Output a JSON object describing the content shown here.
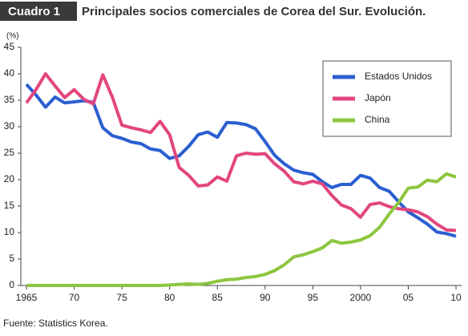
{
  "chart_data": {
    "type": "line",
    "badge": "Cuadro 1",
    "title": "Principales socios comerciales de Corea del Sur. Evolución.",
    "y_label": "(%)",
    "source": "Fuente: Statistics Korea.",
    "x": [
      1965,
      1966,
      1967,
      1968,
      1969,
      1970,
      1971,
      1972,
      1973,
      1974,
      1975,
      1976,
      1977,
      1978,
      1979,
      1980,
      1981,
      1982,
      1983,
      1984,
      1985,
      1986,
      1987,
      1988,
      1989,
      1990,
      1991,
      1992,
      1993,
      1994,
      1995,
      1996,
      1997,
      1998,
      1999,
      2000,
      2001,
      2002,
      2003,
      2004,
      2005,
      2006,
      2007,
      2008,
      2009,
      2010
    ],
    "series": [
      {
        "name": "Estados Unidos",
        "color": "#2b5fd1",
        "values": [
          38,
          36,
          33.7,
          35.6,
          34.5,
          34.7,
          34.9,
          34.6,
          29.8,
          28.3,
          27.8,
          27.1,
          26.8,
          25.8,
          25.5,
          24,
          24.5,
          26.3,
          28.5,
          29,
          28,
          30.8,
          30.7,
          30.4,
          29.6,
          27.2,
          24.6,
          23,
          21.8,
          21.3,
          21,
          19.6,
          18.5,
          19.1,
          19.1,
          20.8,
          20.3,
          18.5,
          17.8,
          15.8,
          13.9,
          12.8,
          11.6,
          10.1,
          9.8,
          9.3
        ]
      },
      {
        "name": "Japón",
        "color": "#e2467f",
        "values": [
          34.5,
          37,
          40,
          37.7,
          35.5,
          37,
          35.2,
          34.3,
          39.8,
          35.6,
          30.3,
          29.8,
          29.4,
          28.9,
          31,
          28.5,
          22.3,
          20.8,
          18.8,
          19,
          20.5,
          19.7,
          24.5,
          25,
          24.8,
          24.9,
          23,
          21.6,
          19.6,
          19.2,
          19.7,
          19.2,
          17,
          15.2,
          14.5,
          12.9,
          15.3,
          15.6,
          14.9,
          14.5,
          14.3,
          13.9,
          13,
          11.6,
          10.5,
          10.4
        ]
      },
      {
        "name": "China",
        "color": "#8dc63f",
        "values": [
          0,
          0,
          0,
          0,
          0,
          0,
          0,
          0,
          0,
          0,
          0,
          0,
          0,
          0,
          0,
          0.1,
          0.2,
          0.3,
          0.2,
          0.4,
          0.8,
          1.1,
          1.2,
          1.5,
          1.7,
          2.1,
          2.8,
          3.9,
          5.4,
          5.8,
          6.4,
          7.1,
          8.5,
          8,
          8.2,
          8.6,
          9.4,
          11,
          13.5,
          15.7,
          18.4,
          18.6,
          19.9,
          19.6,
          21.1,
          20.5
        ]
      }
    ],
    "xlim": [
      1965,
      2010
    ],
    "xticks": [
      {
        "value": 1965,
        "label": "1965"
      },
      {
        "value": 1970,
        "label": "70"
      },
      {
        "value": 1975,
        "label": "75"
      },
      {
        "value": 1980,
        "label": "80"
      },
      {
        "value": 1985,
        "label": "85"
      },
      {
        "value": 1990,
        "label": "90"
      },
      {
        "value": 1995,
        "label": "95"
      },
      {
        "value": 2000,
        "label": "2000"
      },
      {
        "value": 2005,
        "label": "05"
      },
      {
        "value": 2010,
        "label": "10"
      }
    ],
    "ylim": [
      0,
      45
    ],
    "yticks": [
      0,
      5,
      10,
      15,
      20,
      25,
      30,
      35,
      40,
      45
    ],
    "grid": false,
    "legend": "upper right"
  }
}
